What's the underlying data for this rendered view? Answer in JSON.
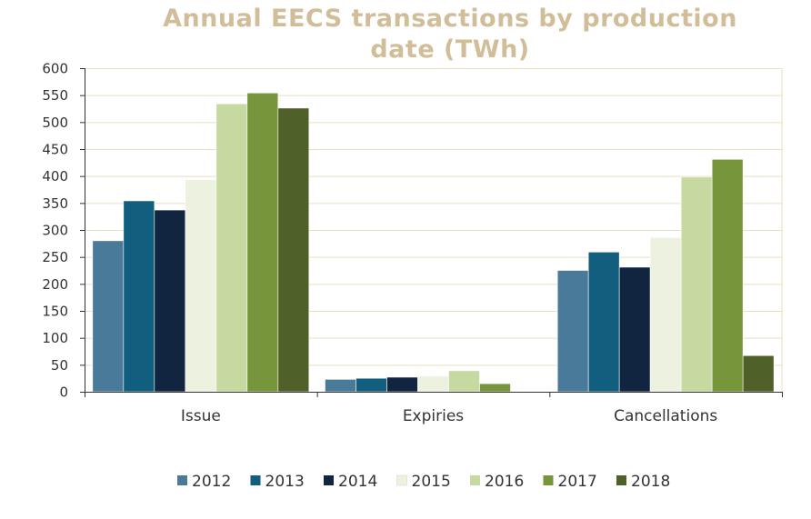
{
  "chart_data": {
    "type": "bar",
    "title": "Annual EECS transactions by production date (TWh)",
    "xlabel": "",
    "ylabel": "",
    "categories": [
      "Issue",
      "Expiries",
      "Cancellations"
    ],
    "ylim": [
      0,
      600
    ],
    "yticks": [
      0,
      50,
      100,
      150,
      200,
      250,
      300,
      350,
      400,
      450,
      500,
      550,
      600
    ],
    "grid": true,
    "legend_position": "bottom",
    "series": [
      {
        "name": "2012",
        "color": "#4a7a9a",
        "values": [
          280,
          23,
          225
        ]
      },
      {
        "name": "2013",
        "color": "#115e7e",
        "values": [
          354,
          25,
          259
        ]
      },
      {
        "name": "2014",
        "color": "#112540",
        "values": [
          337,
          27,
          231
        ]
      },
      {
        "name": "2015",
        "color": "#ecf1e0",
        "values": [
          393,
          29,
          286
        ]
      },
      {
        "name": "2016",
        "color": "#c6d9a0",
        "values": [
          534,
          39,
          398
        ]
      },
      {
        "name": "2017",
        "color": "#77963b",
        "values": [
          554,
          15,
          431
        ]
      },
      {
        "name": "2018",
        "color": "#4f6128",
        "values": [
          526,
          0,
          67
        ]
      }
    ]
  }
}
